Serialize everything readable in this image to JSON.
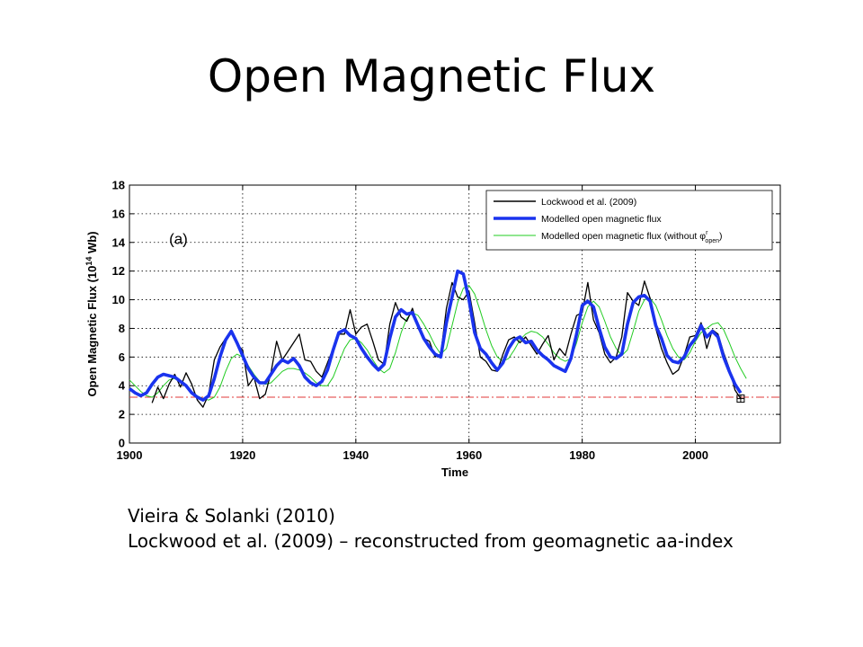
{
  "slide": {
    "title": "Open Magnetic Flux",
    "caption_line1": "Vieira & Solanki (2010)",
    "caption_line2": "Lockwood et al. (2009) – reconstructed from geomagnetic aa-index"
  },
  "chart_data": {
    "type": "line",
    "panel_label": "(a)",
    "xlabel": "Time",
    "ylabel": "Open Magnetic Flux (10",
    "ylabel_exp": "14",
    "ylabel_unit": " Wb)",
    "xlim": [
      1900,
      2015
    ],
    "ylim": [
      0,
      18
    ],
    "xticks": [
      1900,
      1920,
      1940,
      1960,
      1980,
      2000
    ],
    "yticks": [
      0,
      2,
      4,
      6,
      8,
      10,
      12,
      14,
      16,
      18
    ],
    "grid": true,
    "legend_position": "top-right",
    "reference_level": 3.2,
    "series": [
      {
        "name": "Lockwood et al. (2009)",
        "color": "#000000",
        "x": [
          1904,
          1905,
          1906,
          1907,
          1908,
          1909,
          1910,
          1911,
          1912,
          1913,
          1914,
          1915,
          1916,
          1917,
          1918,
          1919,
          1920,
          1921,
          1922,
          1923,
          1924,
          1925,
          1926,
          1927,
          1928,
          1929,
          1930,
          1931,
          1932,
          1933,
          1934,
          1935,
          1936,
          1937,
          1938,
          1939,
          1940,
          1941,
          1942,
          1943,
          1944,
          1945,
          1946,
          1947,
          1948,
          1949,
          1950,
          1951,
          1952,
          1953,
          1954,
          1955,
          1956,
          1957,
          1958,
          1959,
          1960,
          1961,
          1962,
          1963,
          1964,
          1965,
          1966,
          1967,
          1968,
          1969,
          1970,
          1971,
          1972,
          1973,
          1974,
          1975,
          1976,
          1977,
          1978,
          1979,
          1980,
          1981,
          1982,
          1983,
          1984,
          1985,
          1986,
          1987,
          1988,
          1989,
          1990,
          1991,
          1992,
          1993,
          1994,
          1995,
          1996,
          1997,
          1998,
          1999,
          2000,
          2001,
          2002,
          2003,
          2004,
          2005,
          2006,
          2007,
          2008
        ],
        "values": [
          2.8,
          3.9,
          3.1,
          4.1,
          4.8,
          3.9,
          4.9,
          4.1,
          3.0,
          2.5,
          3.4,
          5.8,
          6.7,
          7.3,
          7.9,
          6.9,
          6.5,
          4.0,
          4.6,
          3.1,
          3.4,
          4.9,
          7.1,
          5.8,
          6.4,
          7.0,
          7.6,
          5.8,
          5.7,
          5.0,
          4.6,
          5.6,
          6.6,
          7.6,
          7.6,
          9.3,
          7.6,
          8.1,
          8.3,
          7.1,
          5.8,
          5.5,
          8.3,
          9.8,
          8.8,
          8.5,
          9.4,
          8.0,
          7.3,
          7.1,
          6.0,
          6.2,
          9.4,
          11.2,
          10.2,
          10.0,
          10.6,
          8.4,
          6.0,
          5.7,
          5.1,
          5.0,
          6.2,
          7.2,
          7.4,
          7.0,
          7.4,
          6.8,
          6.2,
          6.9,
          7.5,
          5.8,
          6.6,
          6.1,
          7.6,
          8.9,
          9.1,
          11.2,
          8.6,
          7.7,
          6.2,
          5.6,
          6.0,
          7.4,
          10.5,
          9.9,
          9.6,
          11.3,
          10.1,
          8.0,
          6.6,
          5.6,
          4.8,
          5.1,
          6.1,
          7.4,
          7.5,
          8.4,
          6.6,
          7.9,
          7.6,
          6.3,
          5.2,
          3.7,
          3.1
        ]
      },
      {
        "name": "Modelled open magnetic flux",
        "color": "#1a33ee",
        "x": [
          1900,
          1901,
          1902,
          1903,
          1904,
          1905,
          1906,
          1907,
          1908,
          1909,
          1910,
          1911,
          1912,
          1913,
          1914,
          1915,
          1916,
          1917,
          1918,
          1919,
          1920,
          1921,
          1922,
          1923,
          1924,
          1925,
          1926,
          1927,
          1928,
          1929,
          1930,
          1931,
          1932,
          1933,
          1934,
          1935,
          1936,
          1937,
          1938,
          1939,
          1940,
          1941,
          1942,
          1943,
          1944,
          1945,
          1946,
          1947,
          1948,
          1949,
          1950,
          1951,
          1952,
          1953,
          1954,
          1955,
          1956,
          1957,
          1958,
          1959,
          1960,
          1961,
          1962,
          1963,
          1964,
          1965,
          1966,
          1967,
          1968,
          1969,
          1970,
          1971,
          1972,
          1973,
          1974,
          1975,
          1976,
          1977,
          1978,
          1979,
          1980,
          1981,
          1982,
          1983,
          1984,
          1985,
          1986,
          1987,
          1988,
          1989,
          1990,
          1991,
          1992,
          1993,
          1994,
          1995,
          1996,
          1997,
          1998,
          1999,
          2000,
          2001,
          2002,
          2003,
          2004,
          2005,
          2006,
          2007,
          2008
        ],
        "values": [
          3.8,
          3.5,
          3.3,
          3.5,
          4.1,
          4.6,
          4.8,
          4.7,
          4.6,
          4.3,
          4.0,
          3.5,
          3.2,
          3.0,
          3.3,
          4.5,
          6.0,
          7.2,
          7.8,
          7.0,
          6.1,
          5.2,
          4.6,
          4.2,
          4.2,
          4.8,
          5.4,
          5.8,
          5.6,
          5.9,
          5.4,
          4.6,
          4.2,
          4.0,
          4.3,
          5.1,
          6.5,
          7.7,
          7.9,
          7.5,
          7.3,
          6.6,
          6.0,
          5.5,
          5.1,
          5.5,
          7.3,
          8.8,
          9.3,
          9.0,
          9.1,
          8.2,
          7.3,
          6.7,
          6.2,
          6.0,
          8.4,
          10.2,
          12.0,
          11.8,
          10.0,
          7.7,
          6.6,
          6.2,
          5.6,
          5.1,
          5.6,
          6.6,
          7.2,
          7.4,
          7.0,
          7.1,
          6.5,
          6.1,
          5.8,
          5.4,
          5.2,
          5.0,
          5.9,
          7.6,
          9.6,
          9.9,
          9.5,
          8.0,
          6.7,
          6.0,
          5.9,
          6.2,
          8.3,
          9.8,
          10.2,
          10.3,
          9.9,
          8.2,
          7.3,
          6.1,
          5.7,
          5.6,
          6.0,
          6.8,
          7.3,
          8.2,
          7.4,
          7.8,
          7.4,
          6.0,
          5.0,
          4.1,
          3.5
        ]
      },
      {
        "name": "Modelled open magnetic flux (without φ",
        "name_super": "r",
        "name_sub": "open",
        "name_tail": ")",
        "color": "#22cc22",
        "x": [
          1900,
          1901,
          1902,
          1903,
          1904,
          1905,
          1906,
          1907,
          1908,
          1909,
          1910,
          1911,
          1912,
          1913,
          1914,
          1915,
          1916,
          1917,
          1918,
          1919,
          1920,
          1921,
          1922,
          1923,
          1924,
          1925,
          1926,
          1927,
          1928,
          1929,
          1930,
          1931,
          1932,
          1933,
          1934,
          1935,
          1936,
          1937,
          1938,
          1939,
          1940,
          1941,
          1942,
          1943,
          1944,
          1945,
          1946,
          1947,
          1948,
          1949,
          1950,
          1951,
          1952,
          1953,
          1954,
          1955,
          1956,
          1957,
          1958,
          1959,
          1960,
          1961,
          1962,
          1963,
          1964,
          1965,
          1966,
          1967,
          1968,
          1969,
          1970,
          1971,
          1972,
          1973,
          1974,
          1975,
          1976,
          1977,
          1978,
          1979,
          1980,
          1981,
          1982,
          1983,
          1984,
          1985,
          1986,
          1987,
          1988,
          1989,
          1990,
          1991,
          1992,
          1993,
          1994,
          1995,
          1996,
          1997,
          1998,
          1999,
          2000,
          2001,
          2002,
          2003,
          2004,
          2005,
          2006,
          2007,
          2008,
          2009
        ],
        "values": [
          4.4,
          4.0,
          3.6,
          3.3,
          3.2,
          3.5,
          4.0,
          4.4,
          4.5,
          4.3,
          4.0,
          3.6,
          3.3,
          3.1,
          3.0,
          3.2,
          3.9,
          5.0,
          5.9,
          6.2,
          6.0,
          5.4,
          4.8,
          4.3,
          4.1,
          4.2,
          4.6,
          5.0,
          5.2,
          5.2,
          5.1,
          4.9,
          4.6,
          4.2,
          4.0,
          4.0,
          4.6,
          5.6,
          6.6,
          7.2,
          7.3,
          7.0,
          6.5,
          5.8,
          5.2,
          4.9,
          5.2,
          6.3,
          7.7,
          8.7,
          9.1,
          8.9,
          8.3,
          7.6,
          6.8,
          6.2,
          6.6,
          8.2,
          9.8,
          10.8,
          11.0,
          10.4,
          9.2,
          7.9,
          6.8,
          6.0,
          5.7,
          5.9,
          6.5,
          7.2,
          7.6,
          7.8,
          7.7,
          7.4,
          6.9,
          6.3,
          5.9,
          5.7,
          5.9,
          7.0,
          8.4,
          9.5,
          9.9,
          9.5,
          8.5,
          7.4,
          6.6,
          6.1,
          6.5,
          7.8,
          9.2,
          10.0,
          10.1,
          9.6,
          8.6,
          7.5,
          6.6,
          6.0,
          5.8,
          6.3,
          7.1,
          7.7,
          8.0,
          8.3,
          8.4,
          7.9,
          7.0,
          6.0,
          5.2,
          4.5
        ]
      }
    ],
    "end_marker": {
      "x": 2008,
      "y": 3.1
    }
  }
}
